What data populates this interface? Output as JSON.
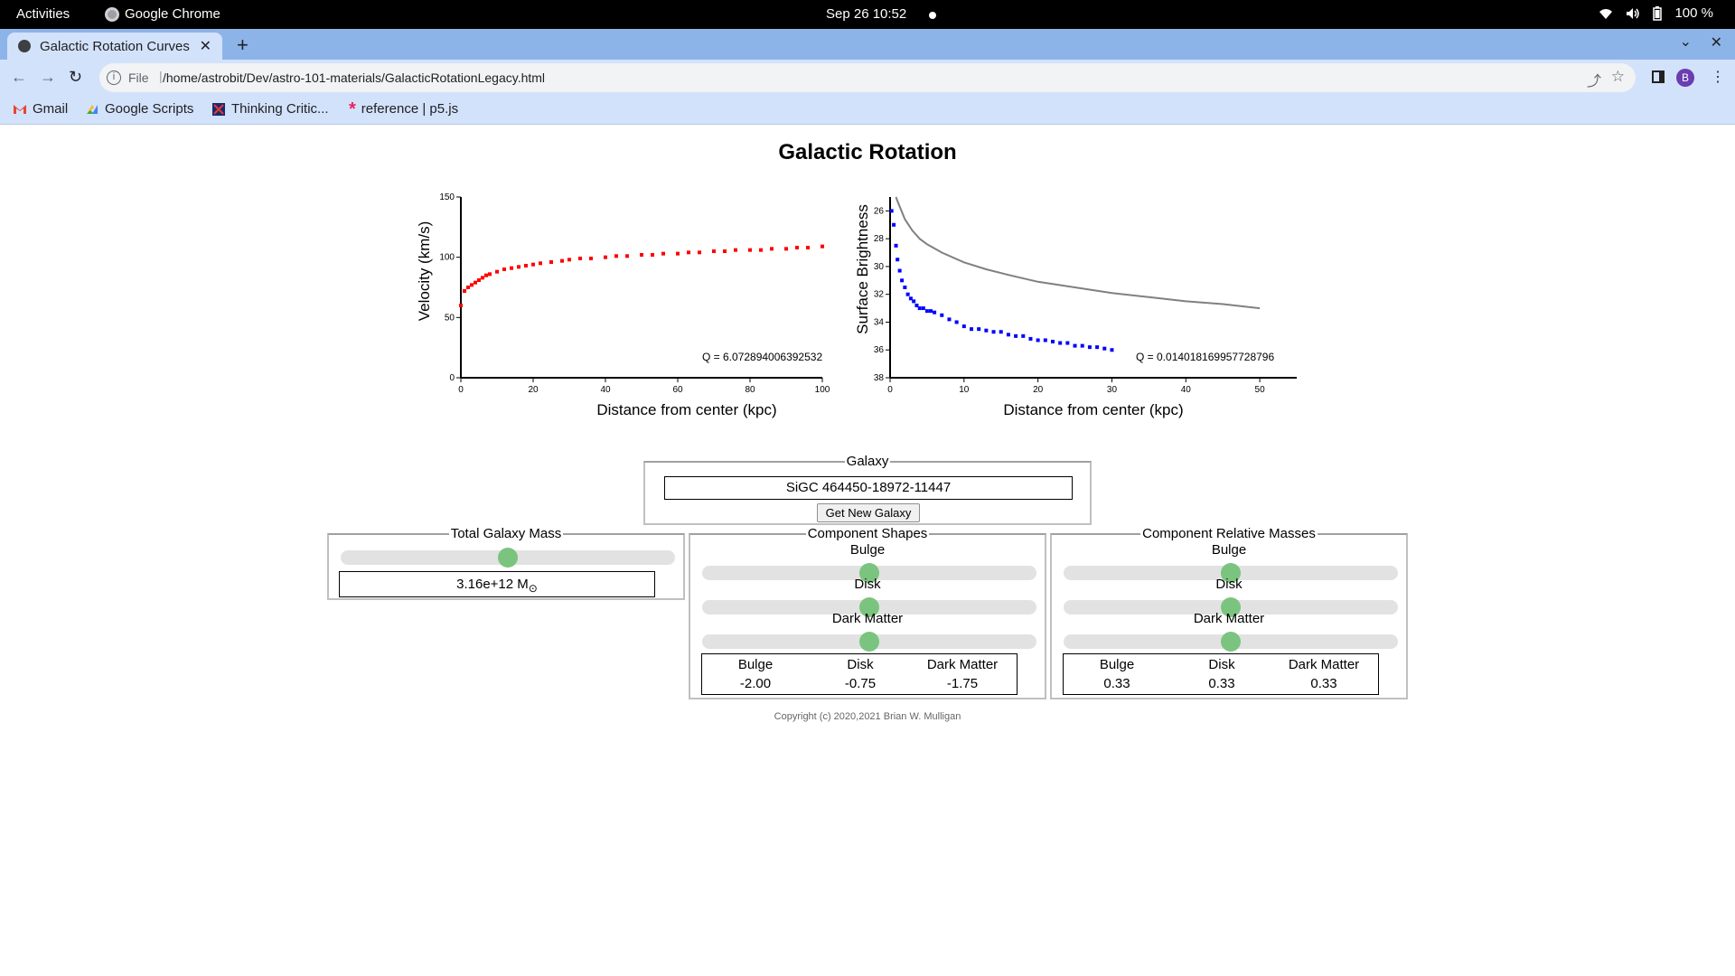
{
  "topbar": {
    "activities": "Activities",
    "app_name": "Google Chrome",
    "clock": "Sep 26  10:52",
    "battery": "100 %"
  },
  "browser": {
    "tab_title": "Galactic Rotation Curves",
    "url_scheme": "File",
    "url": "/home/astrobit/Dev/astro-101-materials/GalacticRotationLegacy.html",
    "profile_initial": "B",
    "bookmarks": [
      "Gmail",
      "Google Scripts",
      "Thinking Critic...",
      "reference | p5.js"
    ]
  },
  "page": {
    "title": "Galactic Rotation",
    "copyright": "Copyright (c) 2020,2021 Brian W. Mulligan"
  },
  "galaxy_panel": {
    "legend": "Galaxy",
    "name": "SiGC 464450-18972-11447",
    "button": "Get New Galaxy"
  },
  "mass_panel": {
    "legend": "Total Galaxy Mass",
    "value": "3.16e+12 M",
    "unit_symbol": "⊙",
    "slider_fraction": 0.5
  },
  "shapes_panel": {
    "legend": "Component Shapes",
    "labels": [
      "Bulge",
      "Disk",
      "Dark Matter"
    ],
    "slider_fractions": [
      0.5,
      0.5,
      0.5
    ],
    "table_headers": [
      "Bulge",
      "Disk",
      "Dark Matter"
    ],
    "table_values": [
      "-2.00",
      "-0.75",
      "-1.75"
    ]
  },
  "masses_panel": {
    "legend": "Component Relative Masses",
    "labels": [
      "Bulge",
      "Disk",
      "Dark Matter"
    ],
    "slider_fractions": [
      0.5,
      0.5,
      0.5
    ],
    "table_headers": [
      "Bulge",
      "Disk",
      "Dark Matter"
    ],
    "table_values": [
      "0.33",
      "0.33",
      "0.33"
    ]
  },
  "colors": {
    "rotation_points": "#ff0000",
    "brightness_points": "#0000ff",
    "brightness_model": "#808080",
    "slider_knob": "#7bc47f"
  },
  "chart_data": [
    {
      "type": "scatter",
      "xlabel": "Distance from center (kpc)",
      "ylabel": "Velocity (km/s)",
      "xlim": [
        0,
        100
      ],
      "ylim": [
        0,
        150
      ],
      "xticks": [
        "0",
        "20",
        "40",
        "60",
        "80",
        "100"
      ],
      "yticks": [
        "0",
        "50",
        "100",
        "150"
      ],
      "annotation": "Q = 6.072894006392532",
      "series": [
        {
          "x": [
            0,
            1,
            2,
            3,
            4,
            5,
            6,
            7,
            8,
            10,
            12,
            14,
            16,
            18,
            20,
            22,
            25,
            28,
            30,
            33,
            36,
            40,
            43,
            46,
            50,
            53,
            56,
            60,
            63,
            66,
            70,
            73,
            76,
            80,
            83,
            86,
            90,
            93,
            96,
            100
          ],
          "y": [
            60,
            72,
            75,
            77,
            79,
            81,
            83,
            85,
            86,
            88,
            90,
            91,
            92,
            93,
            94,
            95,
            96,
            97,
            98,
            99,
            99,
            100,
            101,
            101,
            102,
            102,
            103,
            103,
            104,
            104,
            105,
            105,
            106,
            106,
            106,
            107,
            107,
            108,
            108,
            109
          ]
        }
      ]
    },
    {
      "type": "scatter",
      "xlabel": "Distance from center (kpc)",
      "ylabel": "Surface Brightness",
      "xlim": [
        0,
        55
      ],
      "ylim": [
        38,
        25
      ],
      "xticks": [
        "0",
        "10",
        "20",
        "30",
        "40",
        "50"
      ],
      "yticks": [
        "26",
        "28",
        "30",
        "32",
        "34",
        "36",
        "38"
      ],
      "annotation": "Q = 0.014018169957728796",
      "series": [
        {
          "x": [
            0.2,
            0.5,
            0.8,
            1.0,
            1.3,
            1.6,
            2.0,
            2.4,
            2.8,
            3.2,
            3.6,
            4.0,
            4.5,
            5.0,
            5.5,
            6.0,
            7.0,
            8.0,
            9.0,
            10.0,
            11.0,
            12.0,
            13.0,
            14.0,
            15.0,
            16.0,
            17.0,
            18.0,
            19.0,
            20.0,
            21.0,
            22.0,
            23.0,
            24.0,
            25.0,
            26.0,
            27.0,
            28.0,
            29.0,
            30.0
          ],
          "y": [
            26.0,
            27.0,
            28.5,
            29.5,
            30.3,
            31.0,
            31.5,
            32.0,
            32.3,
            32.5,
            32.8,
            33.0,
            33.0,
            33.2,
            33.2,
            33.3,
            33.5,
            33.8,
            34.0,
            34.3,
            34.5,
            34.5,
            34.6,
            34.7,
            34.7,
            34.9,
            35.0,
            35.0,
            35.2,
            35.3,
            35.3,
            35.4,
            35.5,
            35.5,
            35.7,
            35.7,
            35.8,
            35.8,
            35.9,
            36.0
          ]
        },
        {
          "x": [
            0.8,
            1,
            2,
            3,
            4,
            5,
            7,
            10,
            13,
            16,
            20,
            25,
            30,
            35,
            40,
            45,
            50
          ],
          "y": [
            25.0,
            25.3,
            26.6,
            27.4,
            28.0,
            28.4,
            29.0,
            29.7,
            30.2,
            30.6,
            31.1,
            31.5,
            31.9,
            32.2,
            32.5,
            32.7,
            33.0
          ]
        }
      ]
    }
  ]
}
